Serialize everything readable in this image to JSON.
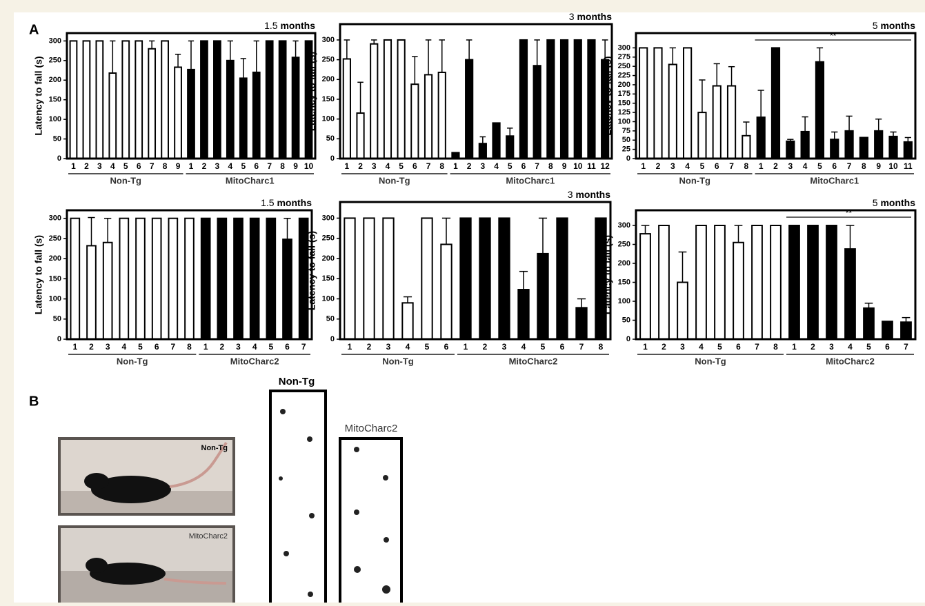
{
  "panel_labels": [
    "A",
    "B"
  ],
  "photos": [
    "Non-Tg",
    "MitoCharc2"
  ],
  "footprints": [
    "Non-Tg",
    "MitoCharc2"
  ],
  "chart_data": [
    {
      "type": "bar",
      "title": "1.5 months",
      "ylabel": "Latency to fall (s)",
      "ylim": [
        0,
        320
      ],
      "yticks": [
        0,
        50,
        100,
        150,
        200,
        250,
        300
      ],
      "categories": [
        "1",
        "2",
        "3",
        "4",
        "5",
        "6",
        "7",
        "8",
        "9",
        "1",
        "2",
        "3",
        "4",
        "5",
        "6",
        "7",
        "8",
        "9",
        "10"
      ],
      "series": [
        {
          "name": "Non-Tg",
          "color": "#ffffff",
          "values": [
            300,
            300,
            300,
            218,
            300,
            300,
            280,
            300,
            233,
            null,
            null,
            null,
            null,
            null,
            null,
            null,
            null,
            null,
            null
          ],
          "errors": [
            null,
            null,
            null,
            82,
            null,
            null,
            20,
            null,
            33,
            null,
            null,
            null,
            null,
            null,
            null,
            null,
            null,
            null,
            null
          ]
        },
        {
          "name": "MitoCharc1",
          "color": "#000000",
          "values": [
            null,
            null,
            null,
            null,
            null,
            null,
            null,
            null,
            null,
            227,
            300,
            300,
            250,
            205,
            220,
            300,
            300,
            258,
            300
          ],
          "errors": [
            null,
            null,
            null,
            null,
            null,
            null,
            null,
            null,
            null,
            73,
            null,
            null,
            50,
            50,
            80,
            null,
            null,
            42,
            null
          ]
        }
      ]
    },
    {
      "type": "bar",
      "title": "3 months",
      "ylabel": "Latency to fall (s)",
      "ylim": [
        0,
        340
      ],
      "yticks": [
        0,
        50,
        100,
        150,
        200,
        250,
        300
      ],
      "categories": [
        "1",
        "2",
        "3",
        "4",
        "5",
        "6",
        "7",
        "8",
        "1",
        "2",
        "3",
        "4",
        "5",
        "6",
        "7",
        "8",
        "9",
        "10",
        "11",
        "12"
      ],
      "series": [
        {
          "name": "Non-Tg",
          "color": "#ffffff",
          "values": [
            252,
            115,
            290,
            300,
            300,
            188,
            212,
            218,
            null,
            null,
            null,
            null,
            null,
            null,
            null,
            null,
            null,
            null,
            null,
            null
          ],
          "errors": [
            48,
            78,
            10,
            null,
            null,
            70,
            88,
            82,
            null,
            null,
            null,
            null,
            null,
            null,
            null,
            null,
            null,
            null,
            null,
            null
          ]
        },
        {
          "name": "MitoCharc1",
          "color": "#000000",
          "values": [
            null,
            null,
            null,
            null,
            null,
            null,
            null,
            null,
            15,
            250,
            38,
            90,
            57,
            300,
            235,
            300,
            300,
            300,
            300,
            250
          ],
          "errors": [
            null,
            null,
            null,
            null,
            null,
            null,
            null,
            null,
            null,
            50,
            17,
            null,
            20,
            null,
            65,
            null,
            null,
            null,
            null,
            50
          ]
        }
      ]
    },
    {
      "type": "bar",
      "title": "5 months",
      "ylabel": "Latency to fall (s)",
      "ylim": [
        0,
        340
      ],
      "yticks": [
        0,
        25,
        50,
        75,
        100,
        125,
        150,
        175,
        200,
        225,
        250,
        275,
        300
      ],
      "annotation": "**",
      "categories": [
        "1",
        "2",
        "3",
        "4",
        "5",
        "6",
        "7",
        "8",
        "1",
        "2",
        "3",
        "4",
        "5",
        "6",
        "7",
        "8",
        "9",
        "10",
        "11"
      ],
      "series": [
        {
          "name": "Non-Tg",
          "color": "#ffffff",
          "values": [
            300,
            300,
            255,
            300,
            125,
            197,
            197,
            62,
            null,
            null,
            null,
            null,
            null,
            null,
            null,
            null,
            null,
            null,
            null
          ],
          "errors": [
            null,
            null,
            45,
            null,
            88,
            60,
            52,
            37,
            null,
            null,
            null,
            null,
            null,
            null,
            null,
            null,
            null,
            null,
            null
          ]
        },
        {
          "name": "MitoCharc1",
          "color": "#000000",
          "values": [
            null,
            null,
            null,
            null,
            null,
            null,
            null,
            null,
            112,
            300,
            47,
            73,
            262,
            52,
            75,
            57,
            75,
            60,
            45
          ],
          "errors": [
            null,
            null,
            null,
            null,
            null,
            null,
            null,
            null,
            73,
            null,
            5,
            40,
            38,
            20,
            40,
            null,
            32,
            12,
            12
          ]
        }
      ]
    },
    {
      "type": "bar",
      "title": "1.5 months",
      "ylabel": "Latency to fall (s)",
      "ylim": [
        0,
        320
      ],
      "yticks": [
        0,
        50,
        100,
        150,
        200,
        250,
        300
      ],
      "categories": [
        "1",
        "2",
        "3",
        "4",
        "5",
        "6",
        "7",
        "8",
        "1",
        "2",
        "3",
        "4",
        "5",
        "6",
        "7"
      ],
      "series": [
        {
          "name": "Non-Tg",
          "color": "#ffffff",
          "values": [
            300,
            232,
            240,
            300,
            300,
            300,
            300,
            300,
            null,
            null,
            null,
            null,
            null,
            null,
            null
          ],
          "errors": [
            null,
            70,
            60,
            null,
            null,
            null,
            null,
            null,
            null,
            null,
            null,
            null,
            null,
            null,
            null
          ]
        },
        {
          "name": "MitoCharc2",
          "color": "#000000",
          "values": [
            null,
            null,
            null,
            null,
            null,
            null,
            null,
            null,
            300,
            300,
            300,
            300,
            300,
            248,
            300
          ],
          "errors": [
            null,
            null,
            null,
            null,
            null,
            null,
            null,
            null,
            null,
            null,
            null,
            null,
            null,
            52,
            null
          ]
        }
      ]
    },
    {
      "type": "bar",
      "title": "3 months",
      "ylabel": "Latency to fall (s)",
      "ylim": [
        0,
        340
      ],
      "yticks": [
        0,
        50,
        100,
        150,
        200,
        250,
        300
      ],
      "categories": [
        "1",
        "2",
        "3",
        "4",
        "5",
        "6",
        "1",
        "2",
        "3",
        "4",
        "5",
        "6",
        "7",
        "8"
      ],
      "series": [
        {
          "name": "Non-Tg",
          "color": "#ffffff",
          "values": [
            300,
            300,
            300,
            90,
            300,
            235,
            null,
            null,
            null,
            null,
            null,
            null,
            null,
            null
          ],
          "errors": [
            null,
            null,
            null,
            15,
            null,
            65,
            null,
            null,
            null,
            null,
            null,
            null,
            null,
            null
          ]
        },
        {
          "name": "MitoCharc2",
          "color": "#000000",
          "values": [
            null,
            null,
            null,
            null,
            null,
            null,
            300,
            300,
            300,
            123,
            212,
            300,
            78,
            300
          ],
          "errors": [
            null,
            null,
            null,
            null,
            null,
            null,
            null,
            null,
            null,
            45,
            88,
            null,
            22,
            null
          ]
        }
      ]
    },
    {
      "type": "bar",
      "title": "5 months",
      "ylabel": "Latency to fall (s)",
      "ylim": [
        0,
        340
      ],
      "yticks": [
        0,
        50,
        100,
        150,
        200,
        250,
        300
      ],
      "annotation": "**",
      "categories": [
        "1",
        "2",
        "3",
        "4",
        "5",
        "6",
        "7",
        "8",
        "1",
        "2",
        "3",
        "4",
        "5",
        "6",
        "7"
      ],
      "series": [
        {
          "name": "Non-Tg",
          "color": "#ffffff",
          "values": [
            278,
            300,
            150,
            300,
            300,
            255,
            300,
            300,
            null,
            null,
            null,
            null,
            null,
            null,
            null
          ],
          "errors": [
            22,
            null,
            80,
            null,
            null,
            45,
            null,
            null,
            null,
            null,
            null,
            null,
            null,
            null,
            null
          ]
        },
        {
          "name": "MitoCharc2",
          "color": "#000000",
          "values": [
            null,
            null,
            null,
            null,
            null,
            null,
            null,
            null,
            300,
            300,
            300,
            238,
            82,
            47,
            45
          ],
          "errors": [
            null,
            null,
            null,
            null,
            null,
            null,
            null,
            null,
            null,
            null,
            null,
            62,
            13,
            null,
            12
          ]
        }
      ]
    }
  ]
}
